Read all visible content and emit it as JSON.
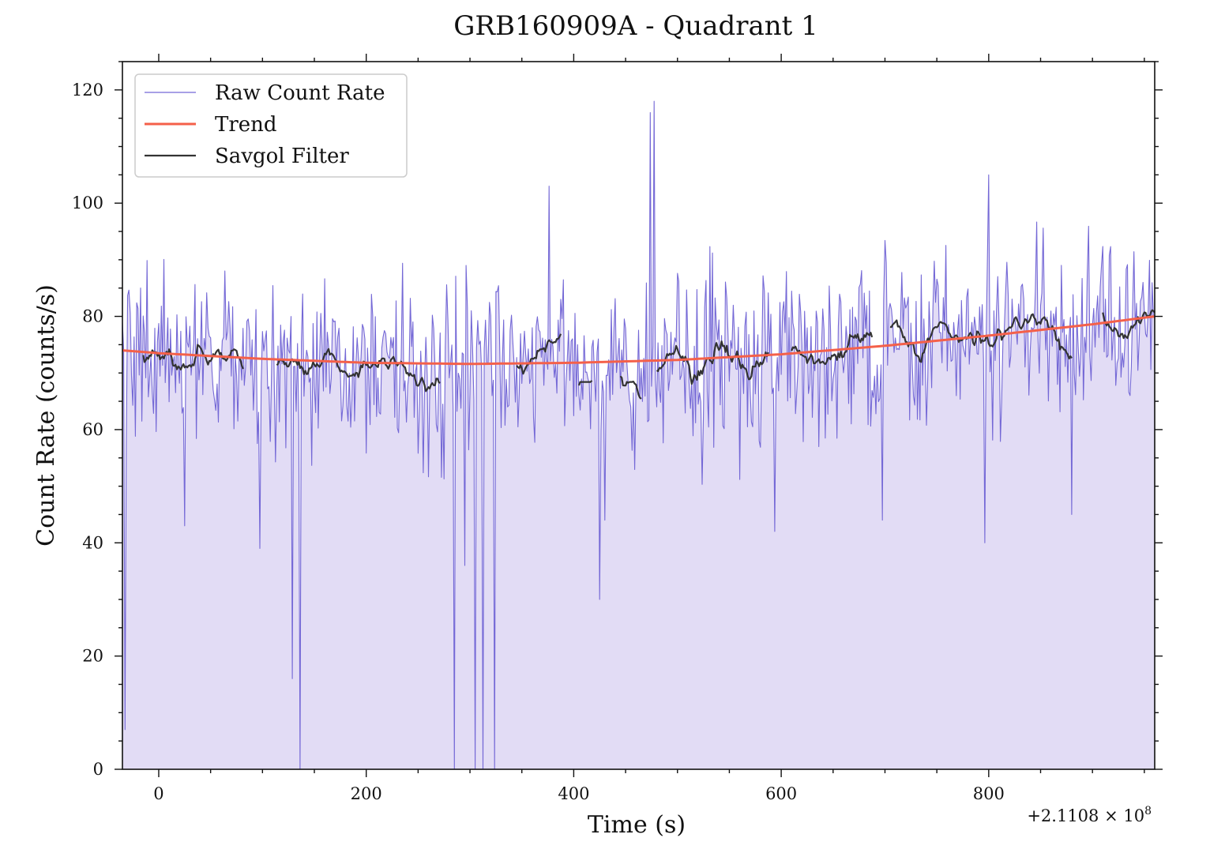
{
  "chart_data": {
    "type": "line",
    "title": "GRB160909A - Quadrant 1",
    "xlabel": "Time (s)",
    "ylabel": "Count Rate (counts/s)",
    "x_offset_label": "+2.1108 × 10",
    "x_offset_exponent": "8",
    "xlim": [
      -35,
      960
    ],
    "ylim": [
      0,
      125
    ],
    "x_ticks": [
      0,
      200,
      400,
      600,
      800
    ],
    "y_ticks": [
      0,
      20,
      40,
      60,
      80,
      100,
      120
    ],
    "grid": false,
    "legend_position": "top-left",
    "legend": [
      "Raw Count Rate",
      "Trend",
      "Savgol Filter"
    ],
    "colors": {
      "raw": "#7468d6",
      "raw_fill": "#e2dcf5",
      "trend": "#f4604a",
      "savgol": "#333333"
    },
    "series": [
      {
        "name": "Raw Count Rate",
        "x_start": -35,
        "x_step": 1.25,
        "spikes": [
          {
            "x": -33,
            "y": 7
          },
          {
            "x": 25,
            "y": 43
          },
          {
            "x": 97,
            "y": 39
          },
          {
            "x": 129,
            "y": 16
          },
          {
            "x": 136,
            "y": 0
          },
          {
            "x": 285,
            "y": 0
          },
          {
            "x": 295,
            "y": 36
          },
          {
            "x": 305,
            "y": 0
          },
          {
            "x": 313,
            "y": 0
          },
          {
            "x": 324,
            "y": 0
          },
          {
            "x": 425,
            "y": 30
          },
          {
            "x": 474,
            "y": 116
          },
          {
            "x": 478,
            "y": 118
          },
          {
            "x": 376,
            "y": 103
          },
          {
            "x": 800,
            "y": 105
          },
          {
            "x": 796,
            "y": 40
          },
          {
            "x": 697,
            "y": 44
          },
          {
            "x": 594,
            "y": 42
          },
          {
            "x": 880,
            "y": 45
          },
          {
            "x": 430,
            "y": 44
          }
        ]
      },
      {
        "name": "Trend",
        "x": [
          -35,
          0,
          100,
          200,
          300,
          400,
          500,
          600,
          700,
          800,
          900,
          960
        ],
        "values": [
          74,
          73.5,
          72.5,
          71.8,
          71.6,
          71.8,
          72.3,
          73.3,
          74.8,
          76.6,
          78.6,
          80
        ]
      },
      {
        "name": "Savgol Filter",
        "segments": [
          [
            -15,
            82
          ],
          [
            113,
            272
          ],
          [
            344,
            388
          ],
          [
            405,
            418
          ],
          [
            444,
            465
          ],
          [
            480,
            588
          ],
          [
            610,
            688
          ],
          [
            705,
            880
          ],
          [
            910,
            960
          ]
        ]
      }
    ]
  }
}
